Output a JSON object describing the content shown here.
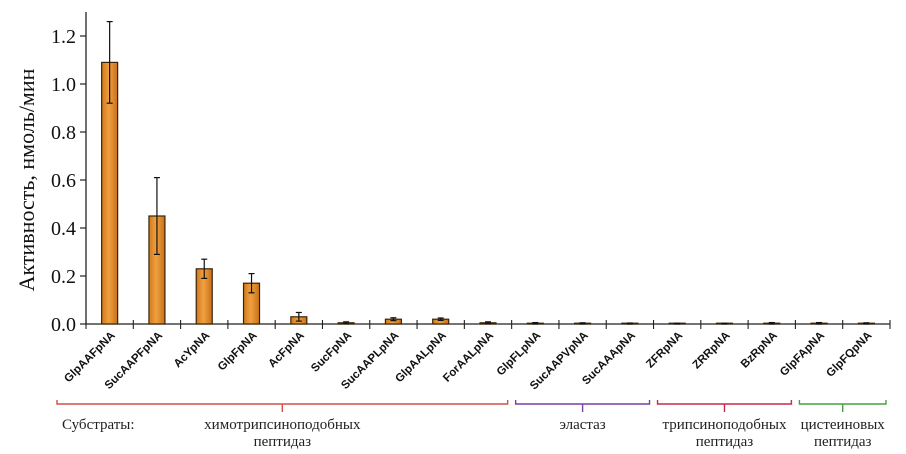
{
  "chart_data": {
    "type": "bar",
    "title": "",
    "xlabel": "",
    "ylabel": "Активность, нмоль/мин",
    "ylim": [
      0,
      1.3
    ],
    "yticks": [
      "0.0",
      "0.2",
      "0.4",
      "0.6",
      "0.8",
      "1.0",
      "1.2"
    ],
    "ytick_values": [
      0,
      0.2,
      0.4,
      0.6,
      0.8,
      1.0,
      1.2
    ],
    "grid": false,
    "categories": [
      "GlpAAFpNA",
      "SucAAPFpNA",
      "AcYpNA",
      "GlpFpNA",
      "AcFpNA",
      "SucFpNA",
      "SucAAPLpNA",
      "GlpAALpNA",
      "ForAALpNA",
      "GlpFLpNA",
      "SucAAPVpNA",
      "SucAAApNA",
      "ZFRpNA",
      "ZRRpNA",
      "BzRpNA",
      "GlpFApNA",
      "GlpFQpNA"
    ],
    "values": [
      1.09,
      0.45,
      0.23,
      0.17,
      0.03,
      0.005,
      0.02,
      0.02,
      0.005,
      0.003,
      0.002,
      0.002,
      0.001,
      0.001,
      0.003,
      0.003,
      0.002
    ],
    "errors": [
      0.17,
      0.16,
      0.04,
      0.04,
      0.018,
      0.004,
      0.006,
      0.005,
      0.004,
      0.003,
      0.003,
      0.002,
      0.002,
      0.002,
      0.003,
      0.003,
      0.003
    ],
    "bar_color": "#f0a040",
    "bar_edge_color": "#3a2408",
    "substrates_label": "Субстраты:",
    "groups": [
      {
        "label_line1": "химотрипсиноподобных",
        "label_line2": "пептидаз",
        "start": 0,
        "end": 8,
        "color": "#d0504a"
      },
      {
        "label_line1": "эластаз",
        "label_line2": "",
        "start": 9,
        "end": 11,
        "color": "#7a3fa0"
      },
      {
        "label_line1": "трипсиноподобных",
        "label_line2": "пептидаз",
        "start": 12,
        "end": 14,
        "color": "#c8284a"
      },
      {
        "label_line1": "цистеиновых",
        "label_line2": "пептидаз",
        "start": 15,
        "end": 16,
        "color": "#4aa040"
      }
    ]
  }
}
